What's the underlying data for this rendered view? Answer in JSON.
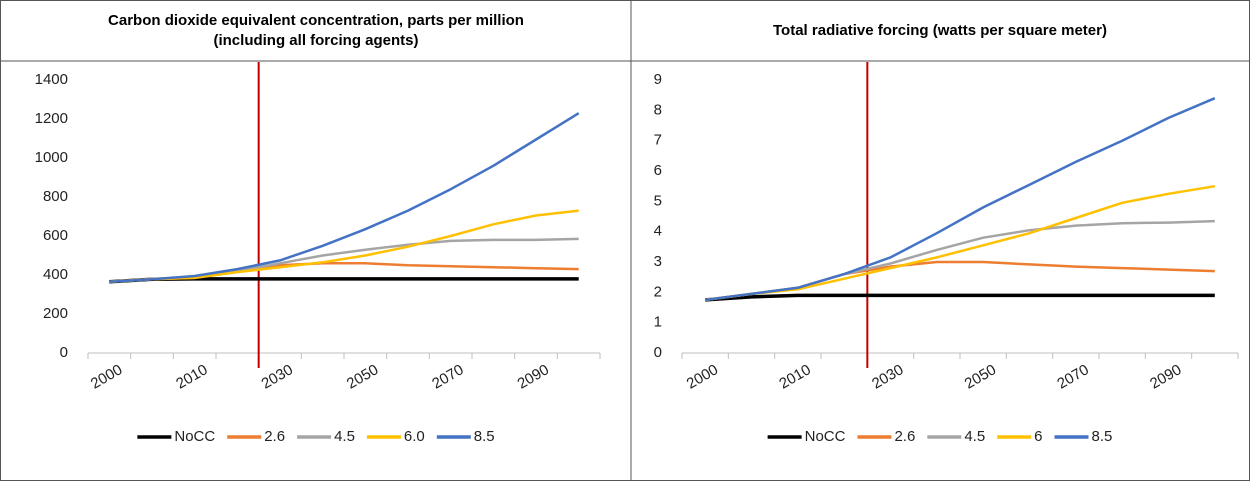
{
  "chart_data": [
    {
      "type": "line",
      "title": [
        "Carbon dioxide  equivalent concentration, parts per million",
        "(including all forcing agents)"
      ],
      "categories": [
        "2000",
        null,
        "2010",
        null,
        "2030",
        null,
        "2050",
        null,
        "2070",
        null,
        "2090",
        null
      ],
      "ylim": [
        0,
        1400
      ],
      "yticks": [
        0,
        200,
        400,
        600,
        800,
        1000,
        1200,
        1400
      ],
      "series": [
        {
          "name": "NoCC",
          "color": "#000000",
          "values": [
            365,
            378,
            380,
            380,
            380,
            380,
            380,
            380,
            380,
            380,
            380,
            380
          ]
        },
        {
          "name": "2.6",
          "color": "#ed7d31",
          "values": [
            365,
            380,
            385,
            420,
            450,
            460,
            460,
            450,
            445,
            440,
            435,
            430
          ]
        },
        {
          "name": "4.5",
          "color": "#a5a5a5",
          "values": [
            365,
            378,
            390,
            420,
            460,
            500,
            530,
            555,
            575,
            580,
            580,
            585
          ]
        },
        {
          "name": "6.0",
          "color": "#ffc000",
          "values": [
            365,
            378,
            385,
            415,
            440,
            465,
            500,
            545,
            600,
            660,
            705,
            730
          ]
        },
        {
          "name": "8.5",
          "color": "#4472c4",
          "values": [
            365,
            378,
            395,
            430,
            475,
            550,
            635,
            730,
            840,
            960,
            1095,
            1230
          ]
        }
      ]
    },
    {
      "type": "line",
      "title": [
        "Total radiative forcing (watts per square meter)"
      ],
      "categories": [
        "2000",
        null,
        "2010",
        null,
        "2030",
        null,
        "2050",
        null,
        "2070",
        null,
        "2090",
        null
      ],
      "ylim": [
        0,
        9
      ],
      "yticks": [
        0,
        1,
        2,
        3,
        4,
        5,
        6,
        7,
        8,
        9
      ],
      "series": [
        {
          "name": "NoCC",
          "color": "#000000",
          "values": [
            1.75,
            1.85,
            1.9,
            1.9,
            1.9,
            1.9,
            1.9,
            1.9,
            1.9,
            1.9,
            1.9,
            1.9
          ]
        },
        {
          "name": "2.6",
          "color": "#ed7d31",
          "values": [
            1.75,
            1.95,
            2.15,
            2.6,
            2.85,
            3.0,
            3.0,
            2.92,
            2.85,
            2.8,
            2.75,
            2.7
          ]
        },
        {
          "name": "4.5",
          "color": "#a5a5a5",
          "values": [
            1.75,
            1.95,
            2.15,
            2.6,
            2.95,
            3.4,
            3.8,
            4.05,
            4.2,
            4.28,
            4.3,
            4.35
          ]
        },
        {
          "name": "6",
          "color": "#ffc000",
          "values": [
            1.75,
            1.95,
            2.1,
            2.45,
            2.8,
            3.15,
            3.55,
            3.95,
            4.45,
            4.95,
            5.25,
            5.5
          ]
        },
        {
          "name": "8.5",
          "color": "#4472c4",
          "values": [
            1.75,
            1.95,
            2.15,
            2.6,
            3.15,
            3.95,
            4.8,
            5.55,
            6.3,
            7.0,
            7.75,
            8.4
          ]
        }
      ]
    }
  ]
}
